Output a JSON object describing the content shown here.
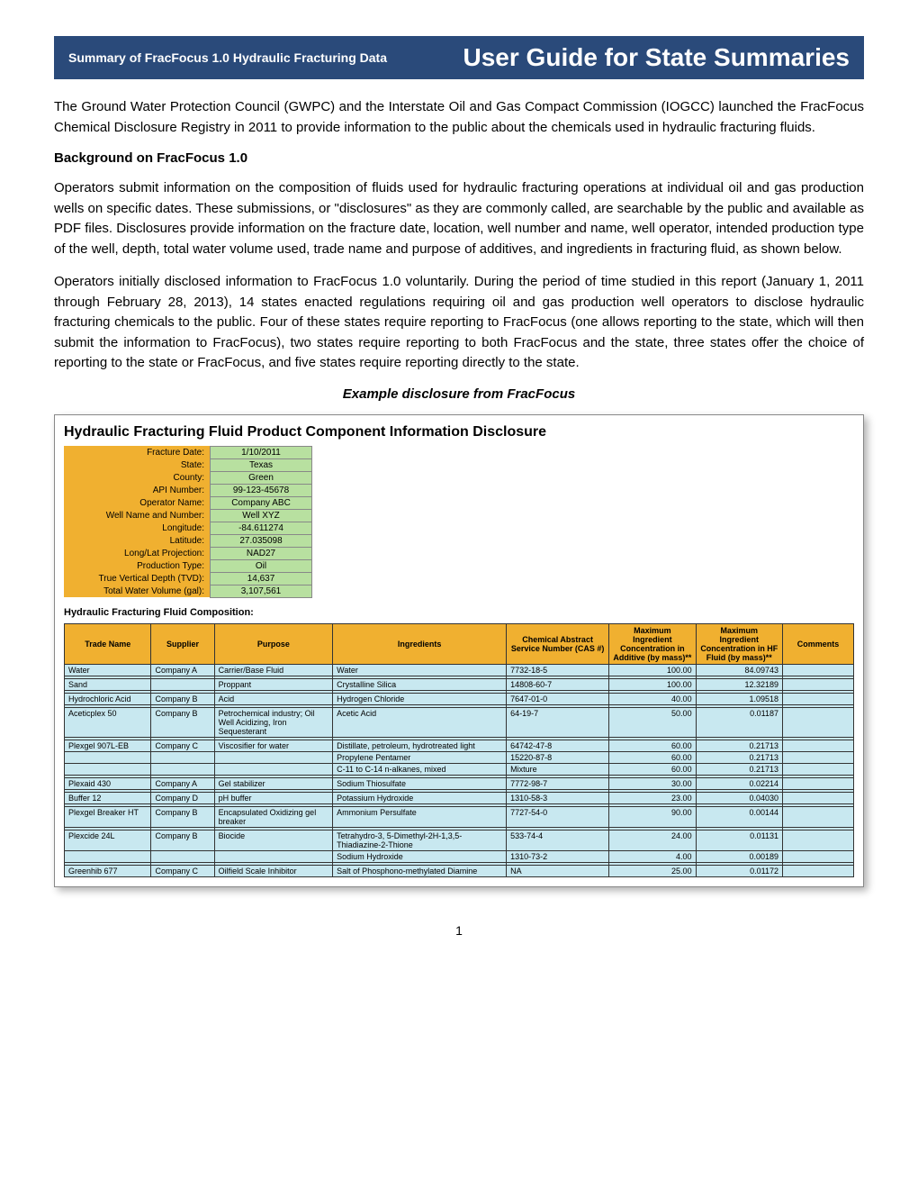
{
  "header": {
    "left": "Summary of FracFocus 1.0 Hydraulic Fracturing Data",
    "right": "User Guide for State Summaries"
  },
  "paragraphs": {
    "intro": "The Ground Water Protection Council (GWPC) and the Interstate Oil and Gas Compact Commission (IOGCC) launched the FracFocus Chemical Disclosure Registry in 2011 to provide information to the public about the chemicals used in hydraulic fracturing fluids.",
    "bg_heading": "Background on FracFocus 1.0",
    "bg1": "Operators submit information on the composition of fluids used for hydraulic fracturing operations at individual oil and gas production wells on specific dates. These submissions, or \"disclosures\" as they are commonly called, are searchable by the public and available as PDF files. Disclosures provide information on the fracture date, location, well number and name, well operator, intended production type of the well, depth, total water volume used, trade name and purpose of additives, and ingredients in fracturing fluid, as shown below.",
    "bg2": "Operators initially disclosed information to FracFocus 1.0 voluntarily. During the period of time studied in this report (January 1, 2011 through February 28, 2013), 14 states enacted regulations requiring oil and gas production well operators to disclose hydraulic fracturing chemicals to the public. Four of these states require reporting to FracFocus (one allows reporting to the state, which will then submit the information to FracFocus), two states require reporting to both FracFocus and the state, three states offer the choice of reporting to the state or FracFocus, and five states require reporting directly to the state.",
    "caption": "Example disclosure from FracFocus"
  },
  "disclosure": {
    "title": "Hydraulic Fracturing Fluid Product Component Information Disclosure",
    "info": [
      {
        "label": "Fracture Date:",
        "value": "1/10/2011"
      },
      {
        "label": "State:",
        "value": "Texas"
      },
      {
        "label": "County:",
        "value": "Green"
      },
      {
        "label": "API Number:",
        "value": "99-123-45678"
      },
      {
        "label": "Operator Name:",
        "value": "Company ABC"
      },
      {
        "label": "Well Name and Number:",
        "value": "Well XYZ"
      },
      {
        "label": "Longitude:",
        "value": "-84.611274"
      },
      {
        "label": "Latitude:",
        "value": "27.035098"
      },
      {
        "label": "Long/Lat Projection:",
        "value": "NAD27"
      },
      {
        "label": "Production Type:",
        "value": "Oil"
      },
      {
        "label": "True Vertical Depth (TVD):",
        "value": "14,637"
      },
      {
        "label": "Total Water Volume (gal):",
        "value": "3,107,561"
      }
    ],
    "comp_label": "Hydraulic Fracturing Fluid Composition:",
    "columns": [
      "Trade Name",
      "Supplier",
      "Purpose",
      "Ingredients",
      "Chemical Abstract Service Number (CAS #)",
      "Maximum Ingredient Concentration in Additive (by mass)**",
      "Maximum Ingredient Concentration in HF Fluid (by mass)**",
      "Comments"
    ],
    "col_widths": [
      "11%",
      "8%",
      "15%",
      "22%",
      "13%",
      "11%",
      "11%",
      "9%"
    ],
    "groups": [
      [
        [
          "Water",
          "Company A",
          "Carrier/Base Fluid",
          "Water",
          "7732-18-5",
          "100.00",
          "84.09743",
          ""
        ]
      ],
      [
        [
          "Sand",
          "",
          "Proppant",
          "Crystalline Silica",
          "14808-60-7",
          "100.00",
          "12.32189",
          ""
        ]
      ],
      [
        [
          "Hydrochloric Acid",
          "Company B",
          "Acid",
          "Hydrogen Chloride",
          "7647-01-0",
          "40.00",
          "1.09518",
          ""
        ]
      ],
      [
        [
          "Aceticplex 50",
          "Company B",
          "Petrochemical industry; Oil Well Acidizing, Iron Sequesterant",
          "Acetic Acid",
          "64-19-7",
          "50.00",
          "0.01187",
          ""
        ]
      ],
      [
        [
          "Plexgel 907L-EB",
          "Company C",
          "Viscosifier for water",
          "Distillate, petroleum, hydrotreated light",
          "64742-47-8",
          "60.00",
          "0.21713",
          ""
        ],
        [
          "",
          "",
          "",
          "Propylene Pentamer",
          "15220-87-8",
          "60.00",
          "0.21713",
          ""
        ],
        [
          "",
          "",
          "",
          "C-11 to C-14 n-alkanes, mixed",
          "Mixture",
          "60.00",
          "0.21713",
          ""
        ]
      ],
      [
        [
          "Plexaid 430",
          "Company A",
          "Gel stabilizer",
          "Sodium Thiosulfate",
          "7772-98-7",
          "30.00",
          "0.02214",
          ""
        ]
      ],
      [
        [
          "Buffer 12",
          "Company D",
          "pH buffer",
          "Potassium Hydroxide",
          "1310-58-3",
          "23.00",
          "0.04030",
          ""
        ]
      ],
      [
        [
          "Plexgel Breaker HT",
          "Company B",
          "Encapsulated Oxidizing gel breaker",
          "Ammonium Persulfate",
          "7727-54-0",
          "90.00",
          "0.00144",
          ""
        ]
      ],
      [
        [
          "Plexcide 24L",
          "Company B",
          "Biocide",
          "Tetrahydro-3, 5-Dimethyl-2H-1,3,5-Thiadiazine-2-Thione",
          "533-74-4",
          "24.00",
          "0.01131",
          ""
        ],
        [
          "",
          "",
          "",
          "Sodium Hydroxide",
          "1310-73-2",
          "4.00",
          "0.00189",
          ""
        ]
      ],
      [
        [
          "Greenhib 677",
          "Company C",
          "Oilfield Scale Inhibitor",
          "Salt of Phosphono-methylated Diamine",
          "NA",
          "25.00",
          "0.01172",
          ""
        ]
      ]
    ]
  },
  "page_number": "1",
  "colors": {
    "banner_bg": "#2a4a7a",
    "header_bg": "#f0b030",
    "info_value_bg": "#b8e0a0",
    "cell_bg": "#c8e8f0"
  }
}
